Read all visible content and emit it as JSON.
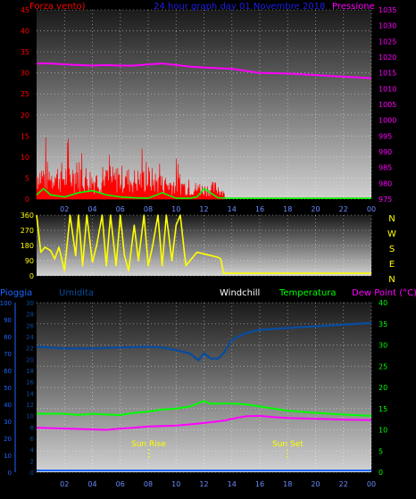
{
  "header": {
    "title": "24 hour graph day  01 Novembre 2018",
    "wind_label": "Forza vento)",
    "pressure_label": "Pressione"
  },
  "bottom_header": {
    "rain_label": "Pioggia",
    "humidity_label": "Umidita",
    "windchill_label": "Windchill",
    "temperature_label": "Temperatura",
    "dewpoint_label": "Dew Point (°C)"
  },
  "annotations": {
    "sunrise": "Sun Rise",
    "sunset": "Sun Set"
  },
  "colors": {
    "wind": "#ff0000",
    "wind_avg": "#00ff00",
    "pressure": "#ff00ff",
    "direction": "#ffff00",
    "temperature": "#00ff00",
    "dewpoint": "#ff00ff",
    "humidity": "#0a4c9c",
    "rain": "#1a66ff",
    "title": "#1e1ef0",
    "time_axis": "#6a8cff",
    "windchill_label": "#ffffff"
  },
  "chart_data": [
    {
      "type": "line",
      "panel": "wind-pressure",
      "x_ticks": [
        "02",
        "04",
        "06",
        "08",
        "10",
        "12",
        "14",
        "16",
        "18",
        "20",
        "22",
        "00"
      ],
      "y_left": {
        "label": "Forza vento)",
        "range": [
          0,
          45
        ],
        "ticks": [
          0,
          5,
          10,
          15,
          20,
          25,
          30,
          35,
          40,
          45
        ]
      },
      "y_right": {
        "label": "Pressione",
        "range": [
          975,
          1035
        ],
        "ticks": [
          975,
          980,
          985,
          990,
          995,
          1000,
          1005,
          1010,
          1015,
          1020,
          1025,
          1030,
          1035
        ]
      },
      "series": [
        {
          "name": "Forza vento)",
          "axis": "left",
          "style": "bars",
          "x": [
            0,
            1,
            2,
            3,
            4,
            5,
            6,
            7,
            8,
            9,
            10,
            11,
            12,
            13,
            14,
            24
          ],
          "y": [
            13,
            12,
            12,
            13,
            10,
            10,
            11,
            10,
            11,
            8,
            8,
            6,
            5,
            6,
            0,
            0
          ]
        },
        {
          "name": "",
          "axis": "left",
          "x": [
            0,
            0.5,
            1,
            2,
            3,
            4,
            5,
            6,
            7,
            8,
            9,
            10,
            11,
            11.5,
            12,
            13,
            14,
            24
          ],
          "y": [
            1,
            2.5,
            1,
            0.5,
            1.5,
            2,
            1,
            0.5,
            0.3,
            0.2,
            1.5,
            0.2,
            0.2,
            0.5,
            2.5,
            0.3,
            0.2,
            0.2
          ]
        },
        {
          "name": "Pressione",
          "axis": "right",
          "x": [
            0,
            1,
            2,
            3,
            4,
            5,
            6,
            7,
            8,
            9,
            10,
            11,
            12,
            13,
            14,
            16,
            18,
            20,
            22,
            24
          ],
          "y": [
            1018,
            1018,
            1017.7,
            1017.5,
            1017.3,
            1017.5,
            1017.3,
            1017.3,
            1017.7,
            1018,
            1017.5,
            1017,
            1016.7,
            1016.5,
            1016.3,
            1015,
            1014.8,
            1014.3,
            1013.8,
            1013.3
          ]
        }
      ]
    },
    {
      "type": "line",
      "panel": "wind-direction",
      "y_left": {
        "range": [
          0,
          360
        ],
        "ticks": [
          0,
          90,
          180,
          270,
          360
        ]
      },
      "y_right_labels": [
        "N",
        "W",
        "S",
        "E",
        "N"
      ],
      "series": [
        {
          "name": "",
          "x": [
            0,
            0.3,
            0.6,
            1,
            1.3,
            1.6,
            2,
            2.4,
            2.8,
            3,
            3.3,
            3.6,
            4,
            4.3,
            4.7,
            5,
            5.3,
            5.7,
            6,
            6.3,
            6.6,
            7,
            7.3,
            7.7,
            8,
            8.3,
            8.7,
            9,
            9.3,
            9.7,
            10,
            10.3,
            10.7,
            11,
            11.5,
            12,
            12.5,
            13,
            13.2,
            13.4,
            14,
            16,
            18,
            20,
            22,
            24
          ],
          "y": [
            360,
            140,
            170,
            150,
            100,
            170,
            30,
            360,
            120,
            360,
            60,
            360,
            80,
            180,
            360,
            60,
            360,
            60,
            360,
            120,
            30,
            300,
            90,
            360,
            60,
            170,
            360,
            60,
            360,
            90,
            300,
            360,
            60,
            90,
            140,
            130,
            120,
            110,
            100,
            15,
            15,
            15,
            15,
            15,
            15,
            15
          ]
        }
      ]
    },
    {
      "type": "line",
      "panel": "temperature-humidity",
      "x_ticks": [
        "02",
        "04",
        "06",
        "08",
        "10",
        "12",
        "14",
        "16",
        "18",
        "20",
        "22",
        "00"
      ],
      "y_outer_left": {
        "label": "Pioggia",
        "range": [
          0,
          100
        ],
        "ticks": [
          0,
          10,
          20,
          30,
          40,
          50,
          60,
          70,
          80,
          90,
          100
        ]
      },
      "y_inner_left": {
        "label": "Umidita",
        "range": [
          0,
          30
        ],
        "ticks": [
          0,
          2,
          4,
          6,
          8,
          10,
          12,
          14,
          16,
          18,
          20,
          22,
          24,
          26,
          28,
          30
        ]
      },
      "y_right": {
        "label": "Dew Point (°C)",
        "range": [
          0,
          40
        ],
        "ticks": [
          0,
          5,
          10,
          15,
          20,
          25,
          30,
          35,
          40
        ]
      },
      "series": [
        {
          "name": "Umidita",
          "axis": "outer_left",
          "x": [
            0,
            2,
            4,
            6,
            8,
            9,
            10,
            11,
            11.6,
            12,
            12.5,
            13,
            13.4,
            14,
            15,
            16,
            18,
            20,
            22,
            24
          ],
          "y": [
            74,
            73,
            73,
            73.5,
            74,
            73.5,
            72,
            70,
            66,
            70,
            67,
            67,
            70,
            78,
            82,
            84,
            85,
            86,
            87,
            88
          ]
        },
        {
          "name": "Temperatura",
          "axis": "right",
          "x": [
            0,
            2,
            3,
            4,
            5,
            6,
            7,
            8,
            9,
            10,
            11,
            12,
            12.5,
            13,
            14,
            15,
            16,
            18,
            20,
            22,
            24
          ],
          "y": [
            13.8,
            13.8,
            13.5,
            13.8,
            13.6,
            13.5,
            14,
            14.3,
            14.8,
            15,
            15.5,
            16.8,
            16.1,
            16.2,
            16.2,
            16,
            15.5,
            14.5,
            14,
            13.6,
            13.3
          ]
        },
        {
          "name": "Dew Point (°C)",
          "axis": "right",
          "x": [
            0,
            2,
            4,
            5,
            6,
            7,
            8,
            9,
            10,
            11,
            12,
            13,
            13.5,
            14,
            15,
            16,
            17,
            18,
            20,
            22,
            24
          ],
          "y": [
            10.5,
            10.3,
            10.1,
            10,
            10.3,
            10.5,
            10.8,
            10.9,
            11,
            11.3,
            11.6,
            12,
            12.2,
            12.6,
            13.2,
            13.3,
            13,
            12.8,
            12.6,
            12.4,
            12.3
          ]
        },
        {
          "name": "Pioggia",
          "axis": "outer_left",
          "x": [
            0,
            24
          ],
          "y": [
            0,
            0
          ]
        }
      ],
      "markers": [
        {
          "label": "Sun Rise",
          "x": 8
        },
        {
          "label": "Sun Set",
          "x": 18
        }
      ]
    }
  ]
}
